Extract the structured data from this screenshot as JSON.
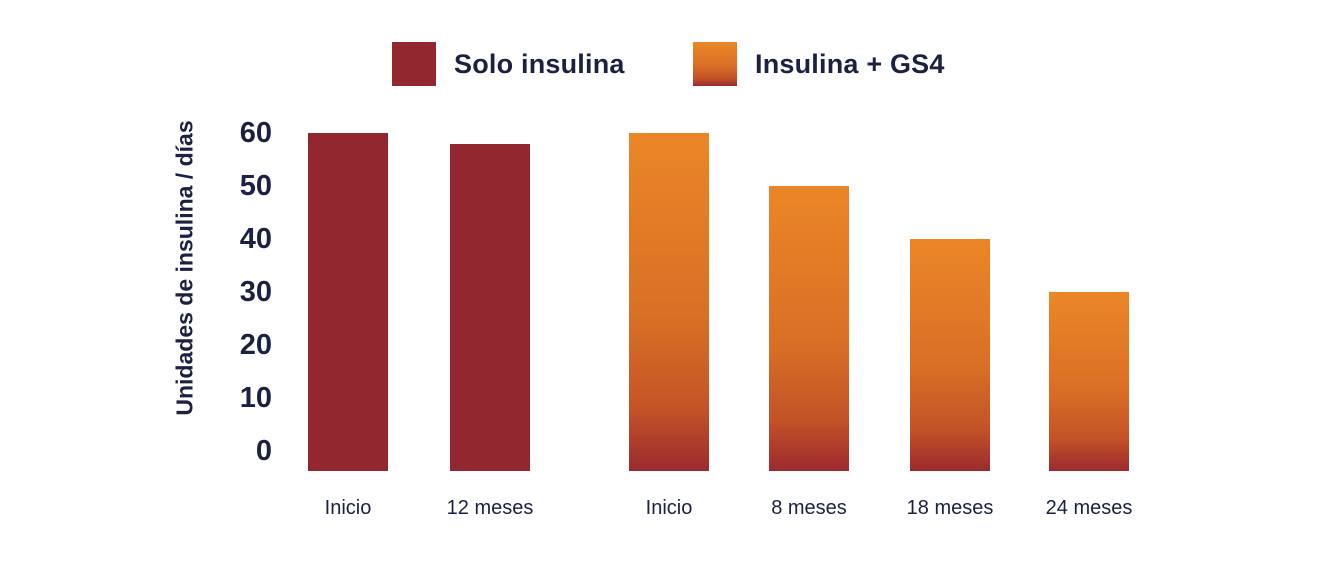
{
  "chart_data": {
    "type": "bar",
    "title": "",
    "xlabel": "",
    "ylabel": "Unidades de insulina / días",
    "yticks": [
      60,
      50,
      40,
      30,
      20,
      10,
      0
    ],
    "ylim": [
      0,
      60
    ],
    "grid": false,
    "legend_position": "top",
    "background_color": "#FFFFFF",
    "text_color": "#1A2143",
    "series": [
      {
        "name": "Solo insulina",
        "style": "solid",
        "color": "#92272F",
        "points": [
          {
            "label": "Inicio",
            "value": 60
          },
          {
            "label": "12 meses",
            "value": 58
          }
        ]
      },
      {
        "name": "Insulina + GS4",
        "style": "gradient",
        "color_top": "#EB8627",
        "color_mid": "#D96F26",
        "color_low": "#C35327",
        "color_bottom": "#9B2A2F",
        "points": [
          {
            "label": "Inicio",
            "value": 60
          },
          {
            "label": "8 meses",
            "value": 50
          },
          {
            "label": "18 meses",
            "value": 40
          },
          {
            "label": "24 meses",
            "value": 30
          }
        ]
      }
    ]
  }
}
